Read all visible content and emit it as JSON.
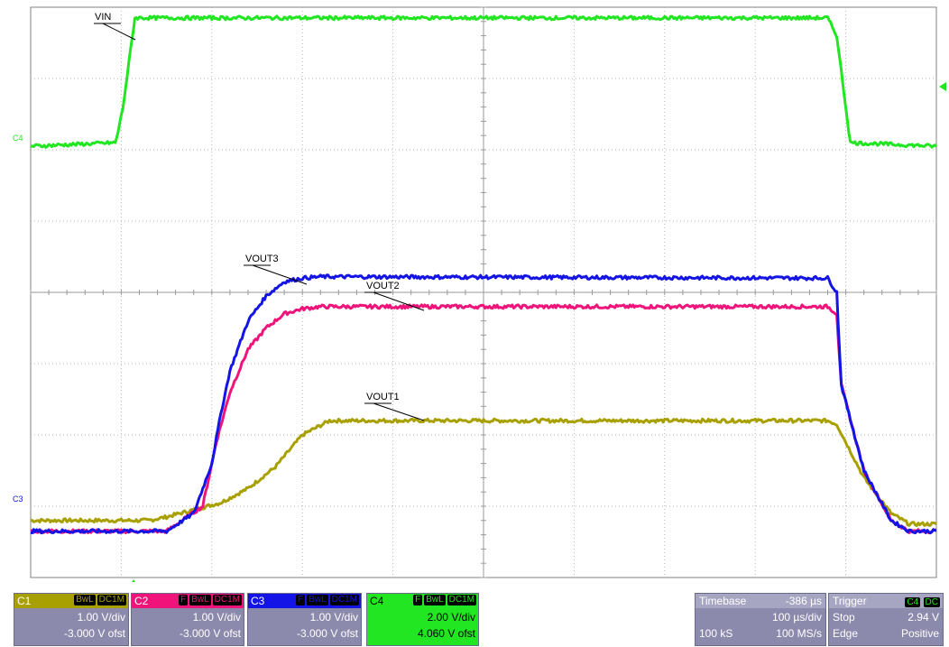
{
  "scope": {
    "grid": {
      "h_divisions": 10,
      "v_divisions": 8
    },
    "traces": [
      {
        "name": "VIN",
        "color": "#21e621"
      },
      {
        "name": "VOUT3",
        "color": "#1414e6"
      },
      {
        "name": "VOUT2",
        "color": "#f0147a"
      },
      {
        "name": "VOUT1",
        "color": "#a8a000"
      }
    ],
    "left_markers": {
      "c4": "C4",
      "c3": "C3"
    }
  },
  "chart_data": {
    "type": "line",
    "title": "",
    "xlabel": "",
    "ylabel": "",
    "x_unit": "time divisions",
    "y_unit": "screen divisions",
    "xlim": [
      0,
      10
    ],
    "ylim": [
      0,
      8
    ],
    "grid": true,
    "series": [
      {
        "name": "VIN",
        "color": "#21e621",
        "x": [
          0,
          0.94,
          1.02,
          1.15,
          8.8,
          8.9,
          9.05,
          10
        ],
        "y": [
          6.05,
          6.1,
          6.6,
          7.85,
          7.85,
          7.6,
          6.1,
          6.05
        ]
      },
      {
        "name": "VOUT3",
        "color": "#1414e6",
        "x": [
          0,
          1.5,
          1.8,
          2.0,
          2.1,
          2.2,
          2.4,
          2.6,
          2.8,
          3.0,
          3.2,
          8.8,
          8.9,
          8.95,
          9.2,
          9.5,
          9.7,
          10
        ],
        "y": [
          0.65,
          0.65,
          0.9,
          1.6,
          2.3,
          2.9,
          3.6,
          3.95,
          4.15,
          4.2,
          4.22,
          4.2,
          4.0,
          2.7,
          1.5,
          0.8,
          0.65,
          0.65
        ]
      },
      {
        "name": "VOUT2",
        "color": "#f0147a",
        "x": [
          0,
          1.5,
          1.9,
          2.05,
          2.2,
          2.4,
          2.6,
          2.8,
          3.0,
          3.2,
          8.8,
          8.9,
          8.95,
          9.2,
          9.5,
          9.7,
          10
        ],
        "y": [
          0.65,
          0.65,
          1.0,
          1.9,
          2.6,
          3.2,
          3.5,
          3.7,
          3.77,
          3.8,
          3.8,
          3.7,
          2.7,
          1.5,
          0.8,
          0.65,
          0.65
        ]
      },
      {
        "name": "VOUT1",
        "color": "#a8a000",
        "x": [
          0,
          1.3,
          1.5,
          1.8,
          2.1,
          2.4,
          2.7,
          3.0,
          3.3,
          8.8,
          8.9,
          9.0,
          9.2,
          9.5,
          9.7,
          10
        ],
        "y": [
          0.8,
          0.8,
          0.85,
          0.95,
          1.05,
          1.25,
          1.55,
          2.0,
          2.2,
          2.2,
          2.15,
          1.9,
          1.4,
          0.9,
          0.75,
          0.75
        ]
      }
    ]
  },
  "channels": [
    {
      "id": "C1",
      "badges": [
        "BwL",
        "DC1M"
      ],
      "volts_div": "1.00 V/div",
      "offset": "-3.000 V ofst",
      "bg": "#8c8aac",
      "head_bg": "#a8a000",
      "head_color": "#ffffff"
    },
    {
      "id": "C2",
      "badges": [
        "F",
        "BwL",
        "DC1M"
      ],
      "volts_div": "1.00 V/div",
      "offset": "-3.000 V ofst",
      "bg": "#8c8aac",
      "head_bg": "#f0147a",
      "head_color": "#ffffff"
    },
    {
      "id": "C3",
      "badges": [
        "F",
        "BwL",
        "DC1M"
      ],
      "volts_div": "1.00 V/div",
      "offset": "-3.000 V ofst",
      "bg": "#8c8aac",
      "head_bg": "#1414e6",
      "head_color": "#ffffff"
    },
    {
      "id": "C4",
      "badges": [
        "F",
        "BwL",
        "DC1M"
      ],
      "volts_div": "2.00 V/div",
      "offset": "4.060 V ofst",
      "bg": "#21e621",
      "head_bg": "#21e621",
      "head_color": "#000000"
    }
  ],
  "timebase": {
    "label": "Timebase",
    "delay": "-386 µs",
    "per_div": "100 µs/div",
    "samples": "100 kS",
    "rate": "100 MS/s"
  },
  "trigger": {
    "label": "Trigger",
    "source": "C4",
    "coupling": "DC",
    "mode": "Stop",
    "level": "2.94 V",
    "type": "Edge",
    "slope": "Positive"
  }
}
